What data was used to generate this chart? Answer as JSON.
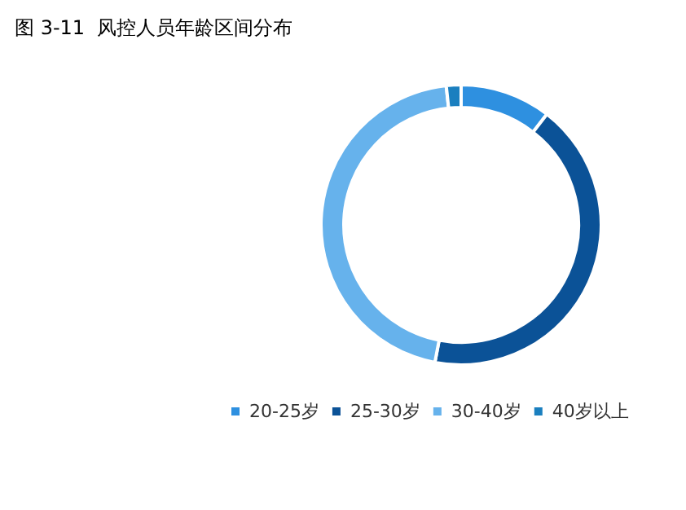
{
  "chart_data": {
    "type": "donut",
    "title": "图 3-11  风控人员年龄区间分布",
    "categories": [
      "20-25岁",
      "25-30岁",
      "30-40岁",
      "40岁以上"
    ],
    "values": [
      10.5,
      42.5,
      45.3,
      1.7
    ],
    "colors": [
      "#2e90e0",
      "#0b5297",
      "#66b2ec",
      "#1a7fbf"
    ],
    "legend": "bottom"
  }
}
